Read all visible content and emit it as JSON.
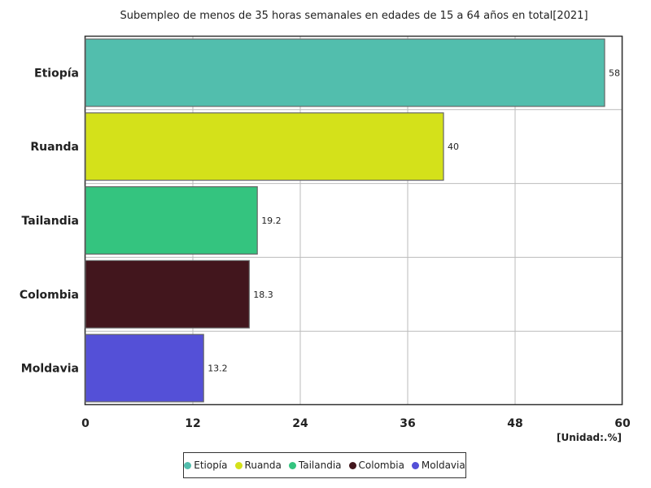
{
  "chart_data": {
    "type": "bar",
    "orientation": "horizontal",
    "title": "Subempleo de menos de 35 horas semanales en edades de 15 a 64 años en total[2021]",
    "unit_label": "[Unidad:.%]",
    "categories": [
      "Etiopía",
      "Ruanda",
      "Tailandia",
      "Colombia",
      "Moldavia"
    ],
    "values": [
      58,
      40,
      19.2,
      18.3,
      13.2
    ],
    "value_labels": [
      "58",
      "40",
      "19.2",
      "18.3",
      "13.2"
    ],
    "colors": [
      "#52bead",
      "#d4e11a",
      "#34c47f",
      "#42161d",
      "#5450d7"
    ],
    "xlim": [
      0,
      60
    ],
    "xticks": [
      0,
      12,
      24,
      36,
      48,
      60
    ],
    "grid": true,
    "legend_position": "bottom"
  }
}
